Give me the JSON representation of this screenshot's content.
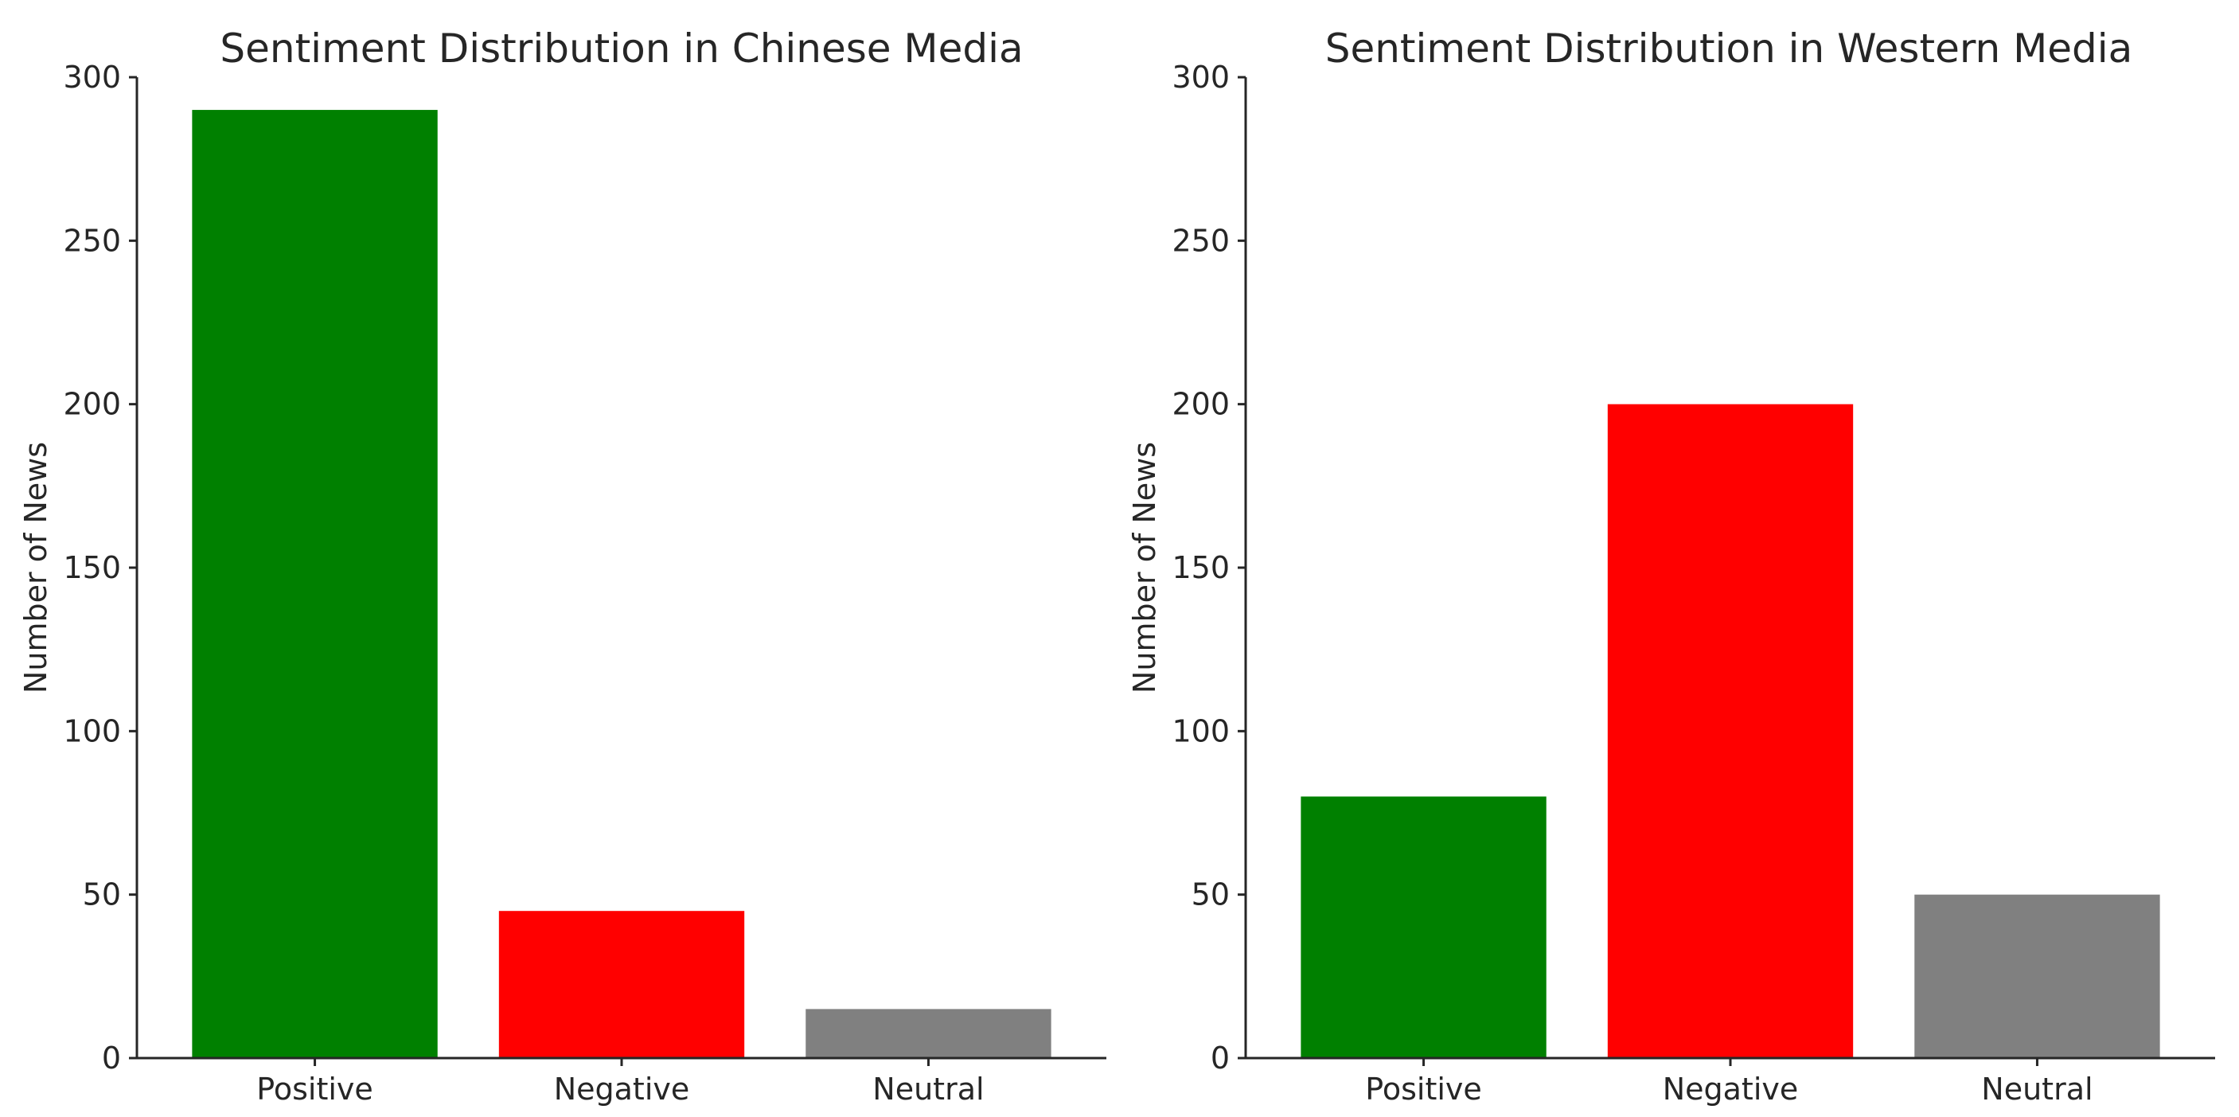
{
  "chart_data": [
    {
      "type": "bar",
      "title": "Sentiment Distribution in Chinese Media",
      "xlabel": "",
      "ylabel": "Number of News",
      "categories": [
        "Positive",
        "Negative",
        "Neutral"
      ],
      "values": [
        290,
        45,
        15
      ],
      "colors": [
        "#008000",
        "#ff0000",
        "#808080"
      ],
      "ylim": [
        0,
        300
      ],
      "yticks": [
        0,
        50,
        100,
        150,
        200,
        250,
        300
      ],
      "grid": false,
      "legend": "none"
    },
    {
      "type": "bar",
      "title": "Sentiment Distribution in Western Media",
      "xlabel": "",
      "ylabel": "Number of News",
      "categories": [
        "Positive",
        "Negative",
        "Neutral"
      ],
      "values": [
        80,
        200,
        50
      ],
      "colors": [
        "#008000",
        "#ff0000",
        "#808080"
      ],
      "ylim": [
        0,
        300
      ],
      "yticks": [
        0,
        50,
        100,
        150,
        200,
        250,
        300
      ],
      "grid": false,
      "legend": "none"
    }
  ]
}
